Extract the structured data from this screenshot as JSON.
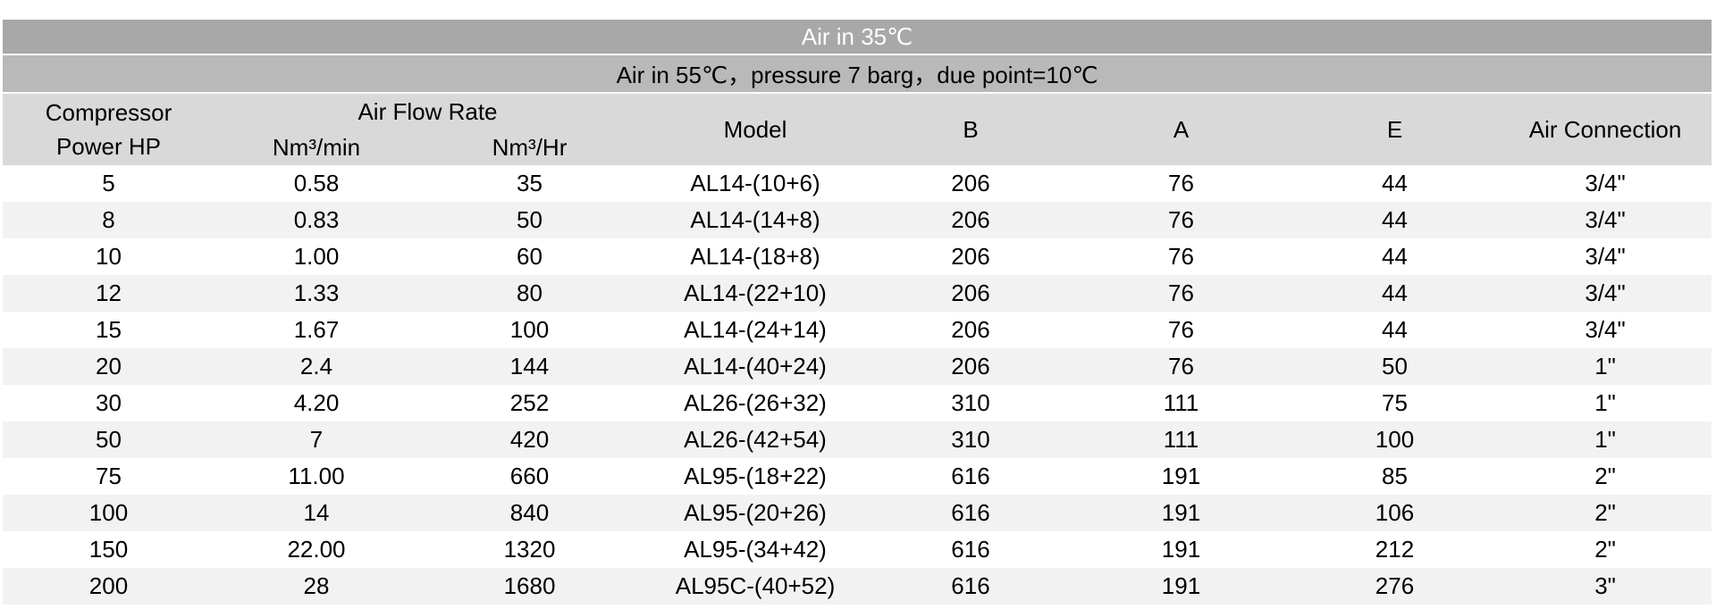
{
  "table": {
    "band1_title": "Air in 35℃",
    "band2_title": "Air in 55℃，pressure 7 barg，due point=10℃",
    "headers": {
      "compressor_line1": "Compressor",
      "compressor_line2": "Power HP",
      "air_flow_rate": "Air Flow Rate",
      "nm3_min": "Nm³/min",
      "nm3_hr": "Nm³/Hr",
      "model": "Model",
      "b": "B",
      "a": "A",
      "e": "E",
      "air_connection": "Air Connection"
    },
    "column_keys": [
      "power-hp",
      "nm3-min",
      "nm3-hr",
      "model",
      "b",
      "a",
      "e",
      "air-connection"
    ],
    "rows": [
      [
        "5",
        "0.58",
        "35",
        "AL14-(10+6)",
        "206",
        "76",
        "44",
        "3/4\""
      ],
      [
        "8",
        "0.83",
        "50",
        "AL14-(14+8)",
        "206",
        "76",
        "44",
        "3/4\""
      ],
      [
        "10",
        "1.00",
        "60",
        "AL14-(18+8)",
        "206",
        "76",
        "44",
        "3/4\""
      ],
      [
        "12",
        "1.33",
        "80",
        "AL14-(22+10)",
        "206",
        "76",
        "44",
        "3/4\""
      ],
      [
        "15",
        "1.67",
        "100",
        "AL14-(24+14)",
        "206",
        "76",
        "44",
        "3/4\""
      ],
      [
        "20",
        "2.4",
        "144",
        "AL14-(40+24)",
        "206",
        "76",
        "50",
        "1\""
      ],
      [
        "30",
        "4.20",
        "252",
        "AL26-(26+32)",
        "310",
        "111",
        "75",
        "1\""
      ],
      [
        "50",
        "7",
        "420",
        "AL26-(42+54)",
        "310",
        "111",
        "100",
        "1\""
      ],
      [
        "75",
        "11.00",
        "660",
        "AL95-(18+22)",
        "616",
        "191",
        "85",
        "2\""
      ],
      [
        "100",
        "14",
        "840",
        "AL95-(20+26)",
        "616",
        "191",
        "106",
        "2\""
      ],
      [
        "150",
        "22.00",
        "1320",
        "AL95-(34+42)",
        "616",
        "191",
        "212",
        "2\""
      ],
      [
        "200",
        "28",
        "1680",
        "AL95C-(40+52)",
        "616",
        "191",
        "276",
        "3\""
      ]
    ],
    "colors": {
      "band1_bg": "#a8a8a8",
      "band1_text": "#ffffff",
      "band2_bg": "#b9b9b9",
      "column_header_bg": "#d9d9d9",
      "row_bg": "#ffffff",
      "row_alt_bg": "#f2f2f2",
      "text": "#000000"
    }
  }
}
